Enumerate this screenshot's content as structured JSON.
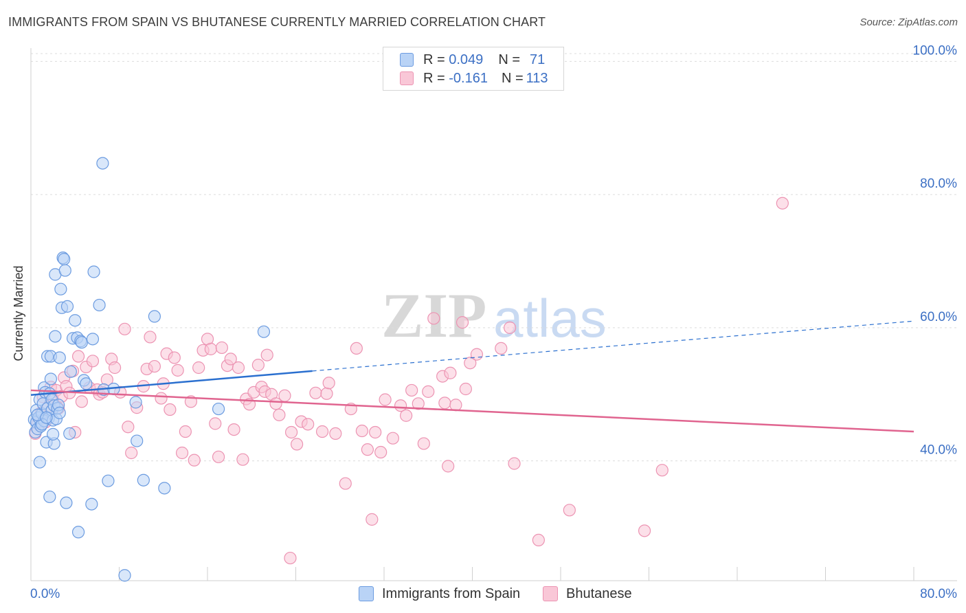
{
  "title": "IMMIGRANTS FROM SPAIN VS BHUTANESE CURRENTLY MARRIED CORRELATION CHART",
  "source": "Source: ZipAtlas.com",
  "watermark": {
    "zip": "ZIP",
    "atlas": "atlas"
  },
  "colors": {
    "spain_fill": "#b9d3f6",
    "spain_stroke": "#6b9be0",
    "spain_line": "#2a6fcf",
    "bhutan_fill": "#f9c7d7",
    "bhutan_stroke": "#ec93b2",
    "bhutan_line": "#e0648f",
    "tick_label": "#3b6fc4"
  },
  "legend": {
    "spain": {
      "r_label": "R =",
      "r_value": "0.049",
      "n_label": "N =",
      "n_value": "71"
    },
    "bhutan": {
      "r_label": "R =",
      "r_value": "-0.161",
      "n_label": "N =",
      "n_value": "113"
    }
  },
  "chart_data": {
    "type": "scatter",
    "title": "IMMIGRANTS FROM SPAIN VS BHUTANESE CURRENTLY MARRIED CORRELATION CHART",
    "ylabel": "Currently Married",
    "xlabel": "",
    "xlim": [
      0,
      80
    ],
    "ylim": [
      22,
      102
    ],
    "x_tick_labels": [
      "0.0%",
      "80.0%"
    ],
    "y_ticks": [
      40,
      60,
      80,
      100
    ],
    "y_tick_labels": [
      "40.0%",
      "60.0%",
      "80.0%",
      "100.0%"
    ],
    "grid": "horizontal dashed",
    "legend_position": "top-center",
    "series": [
      {
        "name": "Immigrants from Spain",
        "trend": {
          "x0": 0,
          "y0": 49.9,
          "x1": 25.5,
          "y1": 53.5,
          "dash_to_x": 80,
          "dash_to_y": 61.0
        },
        "points": [
          [
            0.3,
            46.2
          ],
          [
            0.4,
            44.3
          ],
          [
            0.5,
            45.8
          ],
          [
            0.5,
            47.6
          ],
          [
            0.6,
            44.8
          ],
          [
            0.7,
            46.5
          ],
          [
            0.8,
            39.8
          ],
          [
            0.8,
            49.2
          ],
          [
            0.9,
            45.2
          ],
          [
            1.0,
            47.1
          ],
          [
            1.1,
            48.6
          ],
          [
            1.2,
            51.0
          ],
          [
            1.2,
            46.0
          ],
          [
            1.3,
            50.3
          ],
          [
            1.4,
            42.8
          ],
          [
            1.5,
            55.7
          ],
          [
            1.5,
            47.9
          ],
          [
            1.6,
            46.4
          ],
          [
            1.7,
            50.1
          ],
          [
            1.7,
            34.6
          ],
          [
            1.8,
            52.3
          ],
          [
            1.8,
            55.7
          ],
          [
            1.9,
            49.2
          ],
          [
            1.9,
            47.6
          ],
          [
            2.0,
            46.1
          ],
          [
            2.1,
            48.3
          ],
          [
            2.1,
            42.6
          ],
          [
            2.2,
            58.7
          ],
          [
            2.2,
            68.0
          ],
          [
            2.3,
            46.3
          ],
          [
            2.4,
            47.9
          ],
          [
            2.5,
            48.4
          ],
          [
            2.6,
            55.5
          ],
          [
            2.7,
            65.8
          ],
          [
            2.8,
            63.0
          ],
          [
            2.9,
            70.5
          ],
          [
            3.0,
            70.3
          ],
          [
            3.1,
            68.6
          ],
          [
            3.2,
            33.7
          ],
          [
            3.3,
            63.2
          ],
          [
            3.5,
            44.1
          ],
          [
            3.6,
            53.4
          ],
          [
            3.8,
            58.4
          ],
          [
            4.0,
            61.1
          ],
          [
            4.2,
            58.5
          ],
          [
            4.3,
            29.3
          ],
          [
            4.5,
            58.0
          ],
          [
            4.6,
            57.8
          ],
          [
            4.8,
            52.1
          ],
          [
            5.0,
            51.6
          ],
          [
            5.5,
            33.5
          ],
          [
            5.6,
            58.3
          ],
          [
            5.7,
            68.4
          ],
          [
            6.2,
            63.4
          ],
          [
            6.5,
            84.7
          ],
          [
            6.6,
            50.7
          ],
          [
            7.0,
            37.0
          ],
          [
            7.5,
            50.8
          ],
          [
            8.5,
            22.8
          ],
          [
            9.5,
            48.8
          ],
          [
            9.6,
            43.0
          ],
          [
            10.2,
            37.1
          ],
          [
            11.2,
            61.7
          ],
          [
            12.1,
            35.9
          ],
          [
            17.0,
            47.8
          ],
          [
            21.1,
            59.4
          ],
          [
            1.0,
            45.5
          ],
          [
            2.0,
            44.0
          ],
          [
            0.6,
            46.9
          ],
          [
            1.4,
            46.5
          ],
          [
            2.6,
            47.2
          ]
        ]
      },
      {
        "name": "Bhutanese",
        "trend": {
          "x0": 0,
          "y0": 50.6,
          "x1": 80,
          "y1": 44.4
        },
        "points": [
          [
            0.4,
            44.1
          ],
          [
            0.6,
            45.6
          ],
          [
            0.9,
            47.2
          ],
          [
            1.1,
            49.6
          ],
          [
            1.3,
            45.8
          ],
          [
            1.6,
            48.2
          ],
          [
            1.8,
            51.1
          ],
          [
            2.0,
            49.3
          ],
          [
            2.3,
            50.6
          ],
          [
            2.5,
            47.9
          ],
          [
            2.8,
            49.7
          ],
          [
            3.0,
            52.5
          ],
          [
            3.2,
            51.2
          ],
          [
            3.5,
            50.2
          ],
          [
            3.8,
            53.5
          ],
          [
            4.0,
            44.3
          ],
          [
            4.3,
            55.7
          ],
          [
            4.6,
            48.9
          ],
          [
            5.0,
            54.1
          ],
          [
            5.3,
            51.0
          ],
          [
            5.6,
            55.0
          ],
          [
            6.0,
            50.7
          ],
          [
            6.2,
            50.0
          ],
          [
            6.5,
            50.3
          ],
          [
            6.9,
            52.2
          ],
          [
            7.3,
            55.3
          ],
          [
            7.6,
            54.0
          ],
          [
            8.1,
            50.3
          ],
          [
            8.5,
            59.8
          ],
          [
            8.8,
            45.1
          ],
          [
            9.1,
            41.2
          ],
          [
            9.6,
            48.0
          ],
          [
            10.2,
            51.2
          ],
          [
            10.5,
            53.8
          ],
          [
            10.8,
            58.6
          ],
          [
            11.2,
            54.2
          ],
          [
            11.8,
            49.4
          ],
          [
            12.0,
            51.6
          ],
          [
            12.3,
            56.1
          ],
          [
            12.6,
            47.7
          ],
          [
            13.0,
            55.5
          ],
          [
            13.3,
            53.6
          ],
          [
            13.7,
            41.2
          ],
          [
            14.0,
            44.4
          ],
          [
            14.5,
            48.9
          ],
          [
            14.8,
            40.1
          ],
          [
            15.2,
            54.0
          ],
          [
            15.6,
            56.6
          ],
          [
            16.0,
            58.3
          ],
          [
            16.3,
            56.8
          ],
          [
            16.7,
            45.6
          ],
          [
            17.0,
            40.6
          ],
          [
            17.3,
            57.0
          ],
          [
            17.8,
            54.3
          ],
          [
            18.1,
            55.3
          ],
          [
            18.4,
            44.7
          ],
          [
            18.8,
            54.0
          ],
          [
            19.2,
            40.2
          ],
          [
            19.5,
            49.3
          ],
          [
            19.8,
            48.5
          ],
          [
            20.2,
            50.3
          ],
          [
            20.6,
            54.4
          ],
          [
            20.9,
            51.1
          ],
          [
            21.2,
            50.4
          ],
          [
            21.4,
            55.9
          ],
          [
            21.8,
            50.0
          ],
          [
            22.2,
            48.6
          ],
          [
            22.5,
            46.9
          ],
          [
            23.0,
            49.8
          ],
          [
            23.6,
            44.3
          ],
          [
            24.1,
            42.5
          ],
          [
            24.5,
            45.9
          ],
          [
            25.1,
            45.5
          ],
          [
            25.8,
            50.2
          ],
          [
            26.4,
            44.4
          ],
          [
            26.8,
            50.1
          ],
          [
            27.0,
            51.7
          ],
          [
            27.6,
            44.1
          ],
          [
            28.5,
            36.6
          ],
          [
            29.0,
            47.8
          ],
          [
            29.5,
            56.9
          ],
          [
            30.0,
            44.5
          ],
          [
            30.5,
            41.7
          ],
          [
            30.9,
            31.2
          ],
          [
            31.2,
            44.3
          ],
          [
            31.7,
            41.3
          ],
          [
            32.1,
            49.2
          ],
          [
            32.8,
            43.4
          ],
          [
            33.5,
            48.3
          ],
          [
            34.0,
            46.8
          ],
          [
            34.5,
            50.6
          ],
          [
            35.1,
            48.6
          ],
          [
            35.6,
            42.6
          ],
          [
            36.0,
            50.4
          ],
          [
            36.5,
            61.4
          ],
          [
            37.3,
            52.7
          ],
          [
            37.5,
            48.7
          ],
          [
            37.8,
            39.2
          ],
          [
            38.5,
            48.4
          ],
          [
            39.1,
            60.8
          ],
          [
            39.4,
            50.8
          ],
          [
            39.8,
            54.7
          ],
          [
            40.4,
            56.0
          ],
          [
            42.6,
            56.9
          ],
          [
            43.4,
            60.0
          ],
          [
            43.8,
            39.6
          ],
          [
            46.0,
            28.1
          ],
          [
            48.8,
            32.6
          ],
          [
            55.6,
            29.5
          ],
          [
            57.2,
            38.6
          ],
          [
            68.1,
            78.7
          ],
          [
            23.5,
            25.4
          ],
          [
            38.0,
            53.2
          ]
        ]
      }
    ]
  },
  "bottom_legend": {
    "spain": "Immigrants from Spain",
    "bhutan": "Bhutanese"
  }
}
